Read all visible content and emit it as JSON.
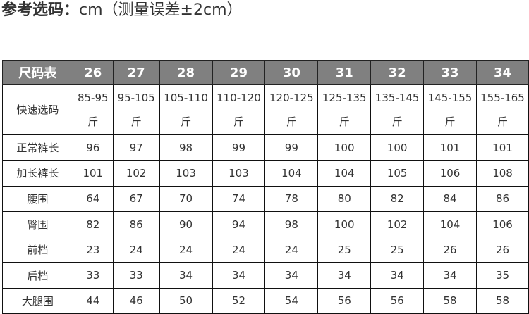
{
  "title": {
    "bold": "参考选码：",
    "rest": "cm（测量误差±2cm）"
  },
  "table": {
    "header": [
      "尺码表",
      "26",
      "27",
      "28",
      "29",
      "30",
      "31",
      "32",
      "33",
      "34"
    ],
    "quick": {
      "label": "快速选码",
      "ranges": [
        "85-95",
        "95-105",
        "105-110",
        "110-120",
        "120-125",
        "125-135",
        "135-145",
        "145-155",
        "155-165"
      ],
      "unit": "斤"
    },
    "rows": [
      {
        "label": "正常裤长",
        "values": [
          "96",
          "97",
          "98",
          "99",
          "99",
          "100",
          "100",
          "101",
          "101"
        ]
      },
      {
        "label": "加长裤长",
        "values": [
          "101",
          "102",
          "103",
          "103",
          "104",
          "104",
          "105",
          "106",
          "108"
        ]
      },
      {
        "label": "腰围",
        "values": [
          "64",
          "67",
          "70",
          "74",
          "78",
          "80",
          "82",
          "84",
          "86"
        ]
      },
      {
        "label": "臀围",
        "values": [
          "82",
          "86",
          "90",
          "94",
          "98",
          "100",
          "102",
          "104",
          "106"
        ]
      },
      {
        "label": "前档",
        "values": [
          "23",
          "24",
          "24",
          "24",
          "24",
          "25",
          "25",
          "26",
          "26"
        ]
      },
      {
        "label": "后档",
        "values": [
          "33",
          "33",
          "34",
          "34",
          "34",
          "34",
          "34",
          "34",
          "35"
        ]
      },
      {
        "label": "大腿围",
        "values": [
          "44",
          "46",
          "50",
          "52",
          "54",
          "56",
          "56",
          "58",
          "58"
        ]
      }
    ],
    "header_color": "#808080"
  }
}
